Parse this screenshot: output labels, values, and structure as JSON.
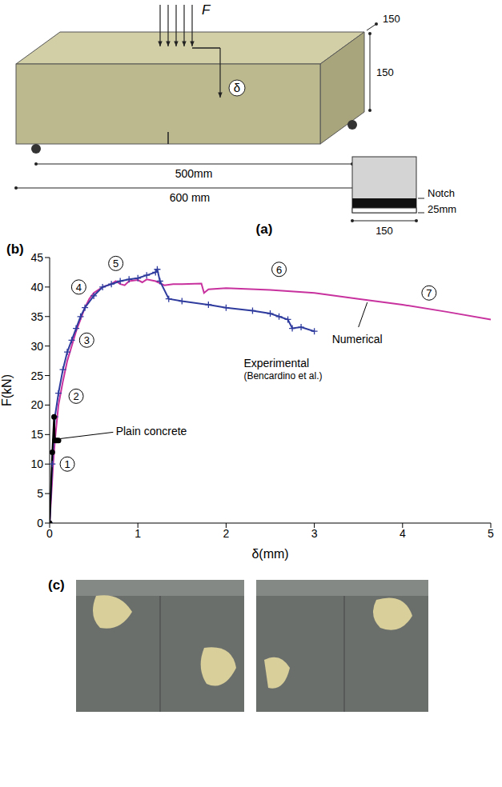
{
  "diagram": {
    "letter": "(a)",
    "load": "F",
    "deflection": "δ",
    "depth": "150",
    "height": "150",
    "span": "500mm",
    "length": "600 mm",
    "section": {
      "notch": "Notch",
      "notch_depth": "25mm",
      "width": "150"
    }
  },
  "chart_data": {
    "type": "line",
    "letter": "(b)",
    "xlabel": "δ(mm)",
    "ylabel": "F(kN)",
    "xlim": [
      0,
      5
    ],
    "ylim": [
      0,
      45
    ],
    "xticks": [
      0,
      1,
      2,
      3,
      4,
      5
    ],
    "yticks": [
      0,
      5,
      10,
      15,
      20,
      25,
      30,
      35,
      40,
      45
    ],
    "grid": false,
    "series": [
      {
        "name": "Numerical",
        "color": "#c8329f",
        "marker": "none",
        "line_style": "solid",
        "x": [
          0,
          0.02,
          0.04,
          0.06,
          0.08,
          0.1,
          0.15,
          0.2,
          0.25,
          0.3,
          0.35,
          0.4,
          0.45,
          0.5,
          0.6,
          0.7,
          0.75,
          0.8,
          0.85,
          0.9,
          1.0,
          1.05,
          1.1,
          1.2,
          1.3,
          1.4,
          1.5,
          1.72,
          1.75,
          1.8,
          2.0,
          2.5,
          3.0,
          3.5,
          4.0,
          4.5,
          5.0
        ],
        "values": [
          0,
          5,
          10,
          14,
          17,
          20,
          24,
          27.5,
          30,
          32.5,
          34.5,
          36.5,
          38,
          39,
          40,
          40.5,
          41,
          40.5,
          40.3,
          41,
          41.2,
          40.8,
          41.3,
          41,
          40.3,
          40.5,
          40.5,
          40.6,
          39,
          39.6,
          39.8,
          39.5,
          39,
          38,
          37,
          35.8,
          34.5
        ],
        "label": {
          "x": 3.2,
          "y": 31,
          "leader": [
            [
              3.5,
              33.2
            ],
            [
              3.6,
              37.4
            ]
          ]
        }
      },
      {
        "name": "Experimental (Bencardino et al.)",
        "color": "#2f3c9e",
        "marker": "plus",
        "line_style": "solid",
        "x": [
          0,
          0.03,
          0.06,
          0.1,
          0.15,
          0.2,
          0.25,
          0.3,
          0.35,
          0.4,
          0.5,
          0.6,
          0.7,
          0.8,
          0.9,
          1.0,
          1.1,
          1.2,
          1.22,
          1.25,
          1.35,
          1.5,
          1.8,
          2.0,
          2.3,
          2.5,
          2.6,
          2.7,
          2.75,
          2.85,
          3.0
        ],
        "values": [
          0,
          10,
          18,
          22,
          26,
          29,
          31,
          33,
          35,
          36.5,
          38.5,
          40,
          40.5,
          41,
          41.3,
          41.5,
          42,
          42.5,
          43,
          41,
          38,
          37.6,
          37,
          36.5,
          36,
          35.5,
          35,
          34.5,
          33,
          33.2,
          32.5
        ],
        "label": {
          "x": 2.2,
          "y": 27
        }
      },
      {
        "name": "Plain concrete",
        "color": "#000000",
        "marker": "circle",
        "line_style": "solid",
        "x": [
          0,
          0.03,
          0.05,
          0.06,
          0.08,
          0.1
        ],
        "values": [
          0,
          12,
          18,
          14,
          14,
          14
        ],
        "label": {
          "x": 0.75,
          "y": 15.5,
          "leader": [
            [
              0.72,
              15.4
            ],
            [
              0.12,
              14.3
            ]
          ]
        }
      }
    ],
    "circled_labels": [
      {
        "text": "1",
        "x": 0.2,
        "y": 10
      },
      {
        "text": "2",
        "x": 0.3,
        "y": 21.5
      },
      {
        "text": "3",
        "x": 0.42,
        "y": 31
      },
      {
        "text": "4",
        "x": 0.33,
        "y": 40
      },
      {
        "text": "5",
        "x": 0.75,
        "y": 44
      },
      {
        "text": "6",
        "x": 2.6,
        "y": 43
      },
      {
        "text": "7",
        "x": 4.3,
        "y": 39
      }
    ]
  },
  "photo": {
    "letter": "(c)"
  }
}
